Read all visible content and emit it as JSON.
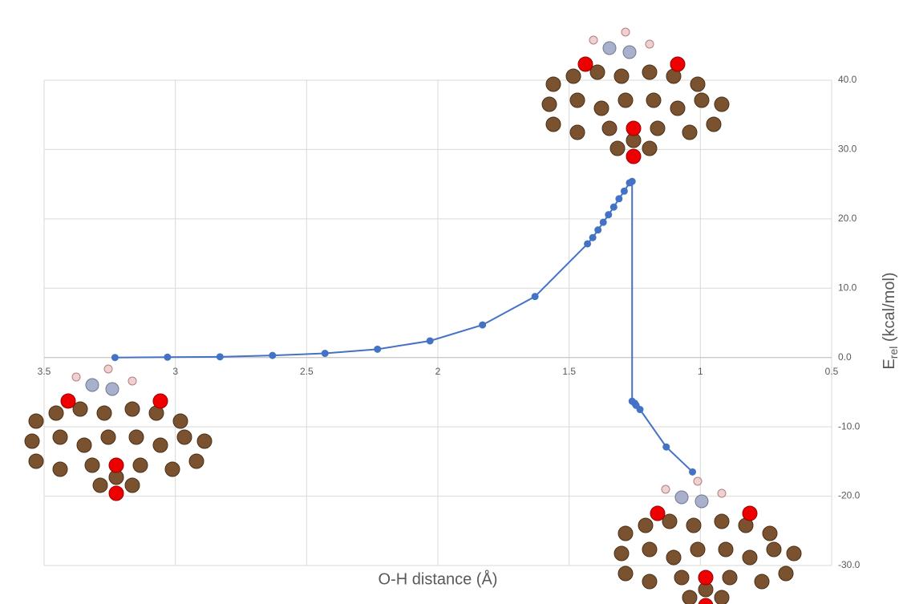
{
  "chart_data": {
    "type": "line",
    "x_label": "O-H distance (Å)",
    "y_label": [
      "E",
      "rel",
      " (kcal/mol)"
    ],
    "x": [
      3.23,
      3.03,
      2.83,
      2.63,
      2.43,
      2.23,
      2.03,
      1.83,
      1.63,
      1.43,
      1.41,
      1.39,
      1.37,
      1.35,
      1.33,
      1.31,
      1.29,
      1.27,
      1.26,
      1.26,
      1.25,
      1.245,
      1.23,
      1.13,
      1.03
    ],
    "series": [
      {
        "color": "#4472c4",
        "values": [
          0,
          0.05,
          0.1,
          0.3,
          0.6,
          1.2,
          2.4,
          4.7,
          8.8,
          16.4,
          17.3,
          18.4,
          19.5,
          20.6,
          21.7,
          22.9,
          24.0,
          25.2,
          25.4,
          -6.3,
          -6.6,
          -6.9,
          -7.5,
          -12.9,
          -16.5
        ]
      }
    ],
    "xlim": [
      3.5,
      0.5
    ],
    "xticks": [
      3.5,
      3,
      2.5,
      2,
      1.5,
      1,
      0.5
    ],
    "ylim": [
      -30,
      40
    ],
    "yticks": [
      {
        "value": -30,
        "label": "-30.0"
      },
      {
        "value": -20,
        "label": "-20.0"
      },
      {
        "value": -10,
        "label": "-10.0"
      },
      {
        "value": 0,
        "label": "0.0"
      },
      {
        "value": 10,
        "label": "10.0"
      },
      {
        "value": 20,
        "label": "20.0"
      },
      {
        "value": 30,
        "label": "30.0"
      },
      {
        "value": 40,
        "label": "40.0"
      }
    ],
    "grid": true
  }
}
